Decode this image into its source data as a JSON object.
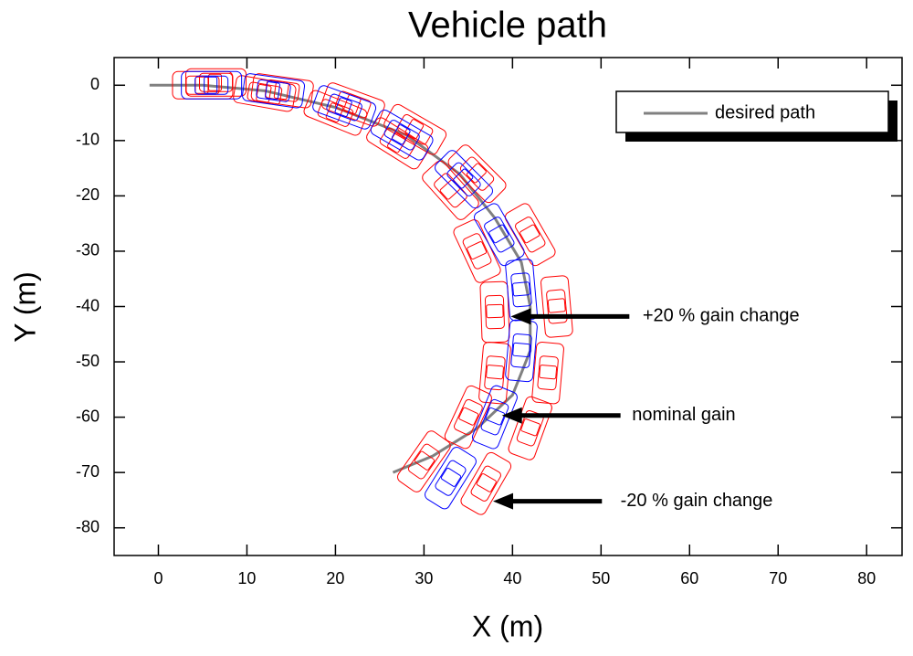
{
  "chart_data": {
    "type": "vehicle-path",
    "title": "Vehicle path",
    "x_label": "X (m)",
    "y_label": "Y (m)",
    "xlim": [
      -5,
      84
    ],
    "ylim": [
      -85,
      5
    ],
    "xticks": [
      0,
      10,
      20,
      30,
      40,
      50,
      60,
      70,
      80
    ],
    "yticks": [
      0,
      -10,
      -20,
      -30,
      -40,
      -50,
      -60,
      -70,
      -80
    ],
    "series": [
      {
        "name": "desired path",
        "color": "#808080",
        "x": [
          -1,
          5,
          12,
          20,
          28,
          34,
          38,
          41,
          42,
          42,
          40,
          36,
          31,
          26.5
        ],
        "y": [
          0,
          0,
          -1,
          -4,
          -9,
          -16,
          -24,
          -32,
          -40,
          -48,
          -56,
          -62,
          -67,
          -70
        ]
      }
    ],
    "vehicles": [
      {
        "color": "#ff0000",
        "x": [
          6.5,
          14,
          22,
          29,
          36,
          42,
          45,
          44,
          42,
          37
        ],
        "y": [
          0.5,
          -1,
          -3.5,
          -8,
          -16,
          -27,
          -40,
          -52,
          -62,
          -72
        ],
        "angle": [
          0,
          8,
          20,
          30,
          45,
          60,
          85,
          95,
          110,
          120
        ]
      },
      {
        "color": "#ff0000",
        "x": [
          5,
          12,
          20,
          27,
          33,
          36,
          38,
          38,
          35,
          30
        ],
        "y": [
          0,
          -1.5,
          -5,
          -10.5,
          -19,
          -30,
          -41,
          -52,
          -60,
          -68
        ],
        "angle": [
          0,
          10,
          22,
          32,
          48,
          65,
          88,
          95,
          115,
          125
        ]
      },
      {
        "color": "#0000ff",
        "x": [
          6,
          13,
          21,
          27.5,
          34.5,
          38.5,
          41,
          41,
          38,
          33
        ],
        "y": [
          0,
          -1,
          -4,
          -9,
          -17,
          -27,
          -37,
          -48,
          -60,
          -71
        ],
        "angle": [
          0,
          8,
          20,
          30,
          45,
          60,
          85,
          95,
          112,
          122
        ]
      }
    ],
    "annotations": [
      {
        "text": "+20 % gain change",
        "x": 54.7,
        "y": -41.8,
        "arrow_x": [
          53.2,
          39.8
        ],
        "arrow_y": [
          -41.8,
          -41.8
        ]
      },
      {
        "text": "nominal gain",
        "x": 53.5,
        "y": -59.7,
        "arrow_x": [
          52.2,
          38.8
        ],
        "arrow_y": [
          -59.7,
          -59.7
        ]
      },
      {
        "text": "-20 % gain change",
        "x": 52.2,
        "y": -75.2,
        "arrow_x": [
          50.1,
          37.8
        ],
        "arrow_y": [
          -75.2,
          -75.2
        ]
      }
    ],
    "legend": "upper right"
  }
}
